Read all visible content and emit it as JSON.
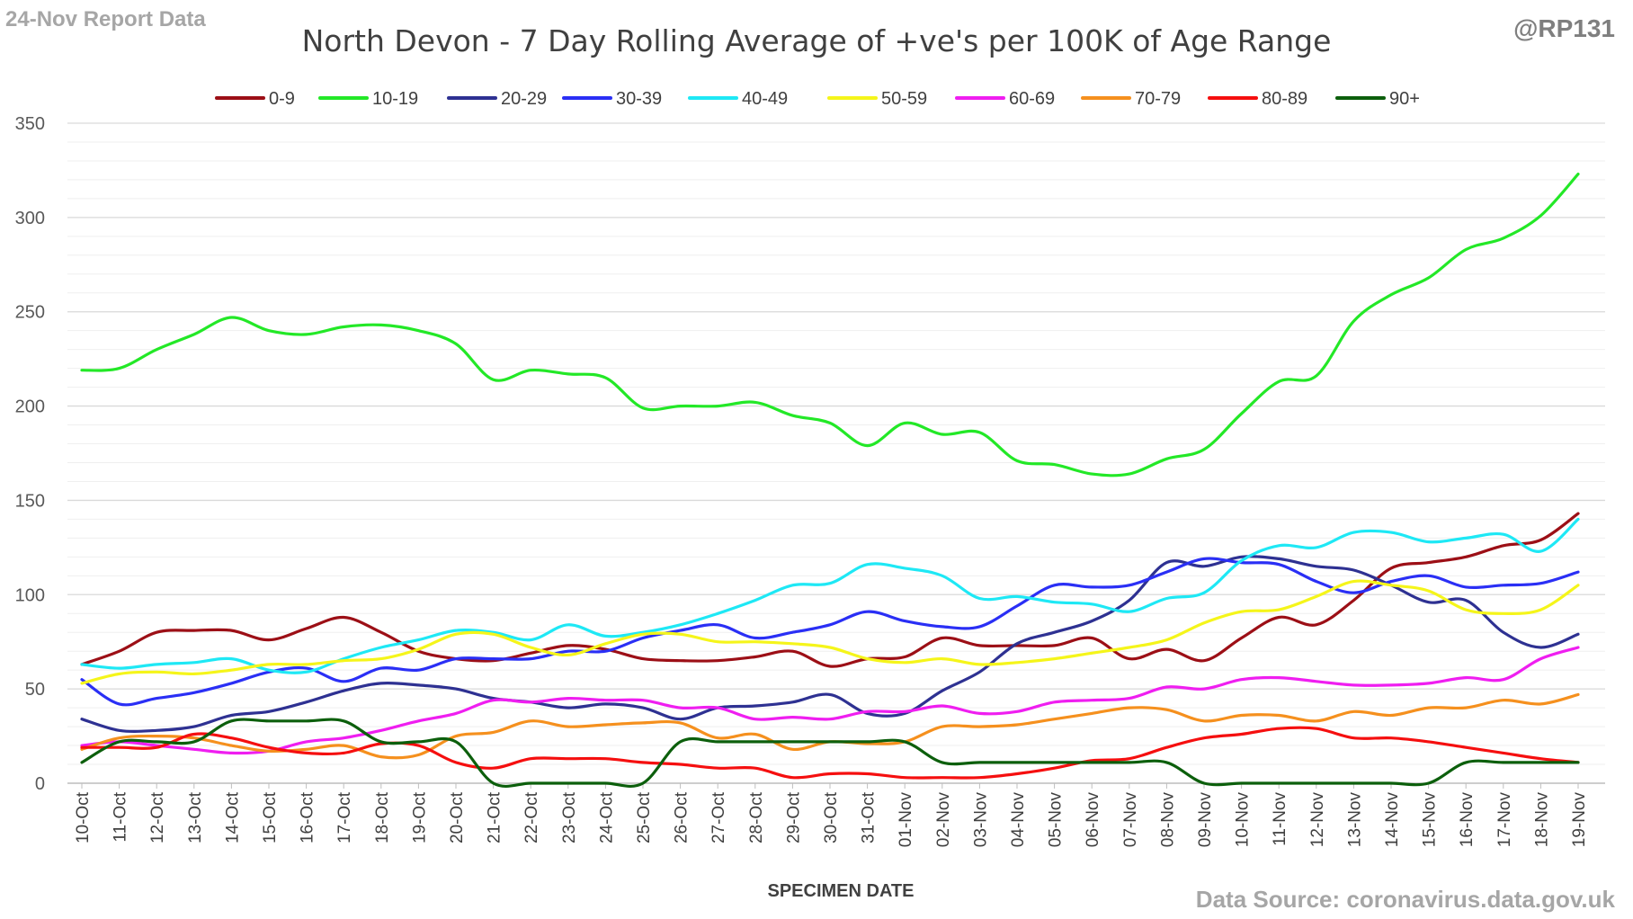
{
  "header": {
    "report_label": "24-Nov Report Data",
    "handle": "@RP131",
    "source": "Data Source: coronavirus.data.gov.uk"
  },
  "colors": {
    "grid": "#d9d9d9",
    "axis": "#bfbfbf"
  },
  "chart_data": {
    "type": "line",
    "title": "North Devon - 7 Day Rolling Average of +ve's per 100K of Age Range",
    "xlabel": "SPECIMEN DATE",
    "ylabel": "",
    "ylim": [
      0,
      350
    ],
    "yticks": [
      0,
      50,
      100,
      150,
      200,
      250,
      300,
      350
    ],
    "grid": true,
    "legend_position": "top",
    "x": [
      "10-Oct",
      "11-Oct",
      "12-Oct",
      "13-Oct",
      "14-Oct",
      "15-Oct",
      "16-Oct",
      "17-Oct",
      "18-Oct",
      "19-Oct",
      "20-Oct",
      "21-Oct",
      "22-Oct",
      "23-Oct",
      "24-Oct",
      "25-Oct",
      "26-Oct",
      "27-Oct",
      "28-Oct",
      "29-Oct",
      "30-Oct",
      "31-Oct",
      "01-Nov",
      "02-Nov",
      "03-Nov",
      "04-Nov",
      "05-Nov",
      "06-Nov",
      "07-Nov",
      "08-Nov",
      "09-Nov",
      "10-Nov",
      "11-Nov",
      "12-Nov",
      "13-Nov",
      "14-Nov",
      "15-Nov",
      "16-Nov",
      "17-Nov",
      "18-Nov",
      "19-Nov"
    ],
    "series": [
      {
        "name": "0-9",
        "color": "#9c0f16",
        "values": [
          63,
          70,
          80,
          81,
          81,
          76,
          82,
          88,
          80,
          70,
          66,
          65,
          69,
          73,
          71,
          66,
          65,
          65,
          67,
          70,
          62,
          66,
          67,
          77,
          73,
          73,
          73,
          77,
          66,
          71,
          65,
          77,
          88,
          84,
          97,
          114,
          117,
          120,
          126,
          129,
          143
        ]
      },
      {
        "name": "10-19",
        "color": "#23e827",
        "values": [
          219,
          220,
          230,
          238,
          247,
          240,
          238,
          242,
          243,
          240,
          233,
          214,
          219,
          217,
          215,
          199,
          200,
          200,
          202,
          195,
          191,
          179,
          191,
          185,
          186,
          171,
          169,
          164,
          164,
          172,
          177,
          196,
          213,
          216,
          245,
          259,
          268,
          283,
          289,
          301,
          323
        ]
      },
      {
        "name": "20-29",
        "color": "#2e3192",
        "values": [
          34,
          28,
          28,
          30,
          36,
          38,
          43,
          49,
          53,
          52,
          50,
          45,
          43,
          40,
          42,
          40,
          34,
          40,
          41,
          43,
          47,
          37,
          37,
          49,
          59,
          74,
          80,
          86,
          97,
          117,
          115,
          120,
          119,
          115,
          113,
          105,
          96,
          97,
          80,
          72,
          79
        ]
      },
      {
        "name": "30-39",
        "color": "#2a2ff5",
        "values": [
          55,
          42,
          45,
          48,
          53,
          59,
          61,
          54,
          61,
          60,
          66,
          66,
          66,
          70,
          70,
          77,
          81,
          84,
          77,
          80,
          84,
          91,
          86,
          83,
          83,
          94,
          105,
          104,
          105,
          112,
          119,
          117,
          116,
          107,
          101,
          107,
          110,
          104,
          105,
          106,
          112
        ]
      },
      {
        "name": "40-49",
        "color": "#1ee8f5",
        "values": [
          63,
          61,
          63,
          64,
          66,
          60,
          59,
          66,
          72,
          76,
          81,
          80,
          76,
          84,
          78,
          80,
          84,
          90,
          97,
          105,
          106,
          116,
          114,
          110,
          98,
          99,
          96,
          95,
          91,
          98,
          101,
          118,
          126,
          125,
          133,
          133,
          128,
          130,
          132,
          123,
          140
        ]
      },
      {
        "name": "50-59",
        "color": "#f5f51a",
        "values": [
          53,
          58,
          59,
          58,
          60,
          63,
          63,
          65,
          66,
          71,
          79,
          79,
          72,
          68,
          74,
          79,
          79,
          75,
          75,
          74,
          72,
          66,
          64,
          66,
          63,
          64,
          66,
          69,
          72,
          76,
          85,
          91,
          92,
          99,
          107,
          105,
          102,
          92,
          90,
          92,
          105
        ]
      },
      {
        "name": "60-69",
        "color": "#ef1ef0",
        "values": [
          20,
          22,
          20,
          18,
          16,
          17,
          22,
          24,
          28,
          33,
          37,
          44,
          43,
          45,
          44,
          44,
          40,
          40,
          34,
          35,
          34,
          38,
          38,
          41,
          37,
          38,
          43,
          44,
          45,
          51,
          50,
          55,
          56,
          54,
          52,
          52,
          53,
          56,
          55,
          66,
          72
        ]
      },
      {
        "name": "70-79",
        "color": "#f5901e",
        "values": [
          18,
          24,
          25,
          24,
          20,
          17,
          18,
          20,
          14,
          15,
          25,
          27,
          33,
          30,
          31,
          32,
          32,
          24,
          26,
          18,
          22,
          21,
          22,
          30,
          30,
          31,
          34,
          37,
          40,
          39,
          33,
          36,
          36,
          33,
          38,
          36,
          40,
          40,
          44,
          42,
          47
        ]
      },
      {
        "name": "80-89",
        "color": "#f50f0f",
        "values": [
          19,
          19,
          19,
          26,
          24,
          19,
          16,
          16,
          21,
          20,
          11,
          8,
          13,
          13,
          13,
          11,
          10,
          8,
          8,
          3,
          5,
          5,
          3,
          3,
          3,
          5,
          8,
          12,
          13,
          19,
          24,
          26,
          29,
          29,
          24,
          24,
          22,
          19,
          16,
          13,
          11
        ]
      },
      {
        "name": "90+",
        "color": "#0c5f0c",
        "values": [
          11,
          22,
          22,
          22,
          33,
          33,
          33,
          33,
          22,
          22,
          22,
          0,
          0,
          0,
          0,
          0,
          22,
          22,
          22,
          22,
          22,
          22,
          22,
          11,
          11,
          11,
          11,
          11,
          11,
          11,
          0,
          0,
          0,
          0,
          0,
          0,
          0,
          11,
          11,
          11,
          11
        ]
      }
    ]
  }
}
